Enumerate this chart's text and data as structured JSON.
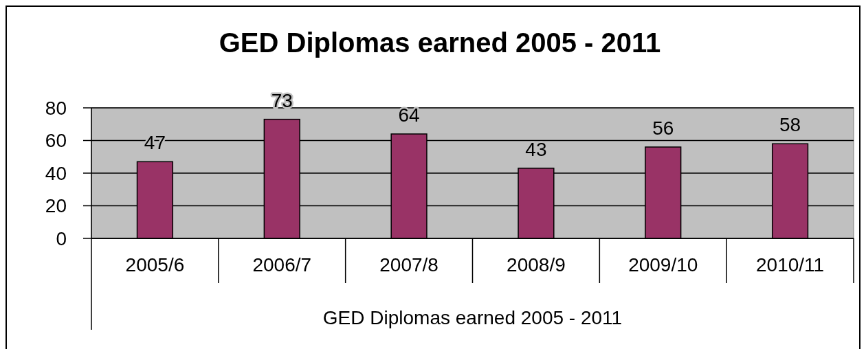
{
  "chart_data": {
    "type": "bar",
    "title": "GED Diplomas earned 2005 - 2011",
    "xlabel": "GED Diplomas earned 2005 - 2011",
    "categories": [
      "2005/6",
      "2006/7",
      "2007/8",
      "2008/9",
      "2009/10",
      "2010/11"
    ],
    "values": [
      47,
      73,
      64,
      43,
      56,
      58
    ],
    "color": "#993366",
    "ylim": [
      0,
      80
    ],
    "yticks": [
      0,
      20,
      40,
      60,
      80
    ],
    "grid": "y",
    "data_labels": true
  }
}
